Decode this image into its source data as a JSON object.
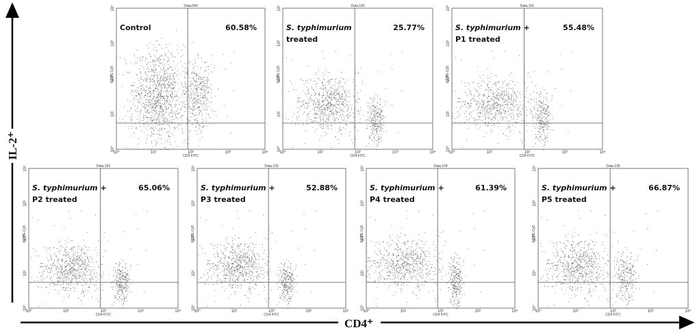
{
  "axes": {
    "y_label": "IL-2⁺",
    "x_label": "CD4⁺",
    "panel_x_label": "CD4 FITC",
    "panel_y_label": "IL2 PE-Cy5",
    "ticks": [
      "10⁰",
      "10¹",
      "10²",
      "10³",
      "10⁴"
    ]
  },
  "panels": [
    {
      "title": "Data.099",
      "percent": "60.58%",
      "lines": [
        [
          {
            "text": "Control",
            "italic": false
          }
        ]
      ]
    },
    {
      "title": "Data.100",
      "percent": "25.77%",
      "lines": [
        [
          {
            "text": "S. typhimurium",
            "italic": true
          }
        ],
        [
          {
            "text": "treated",
            "italic": false
          }
        ]
      ]
    },
    {
      "title": "Data.101",
      "percent": "55.48%",
      "lines": [
        [
          {
            "text": "S. typhimurium",
            "italic": true
          },
          {
            "text": " +",
            "italic": false
          }
        ],
        [
          {
            "text": "P1 treated",
            "italic": false
          }
        ]
      ]
    },
    {
      "title": "Data.102",
      "percent": "65.06%",
      "lines": [
        [
          {
            "text": "S. typhimurium",
            "italic": true
          },
          {
            "text": " +",
            "italic": false
          }
        ],
        [
          {
            "text": "P2 treated",
            "italic": false
          }
        ]
      ]
    },
    {
      "title": "Data.103",
      "percent": "52.88%",
      "lines": [
        [
          {
            "text": "S. typhimurium",
            "italic": true
          },
          {
            "text": " +",
            "italic": false
          }
        ],
        [
          {
            "text": "P3 treated",
            "italic": false
          }
        ]
      ]
    },
    {
      "title": "Data.104",
      "percent": "61.39%",
      "lines": [
        [
          {
            "text": "S. typhimurium",
            "italic": true
          },
          {
            "text": " +",
            "italic": false
          }
        ],
        [
          {
            "text": "P4 treated",
            "italic": false
          }
        ]
      ]
    },
    {
      "title": "Data.105",
      "percent": "66.87%",
      "lines": [
        [
          {
            "text": "S. typhimurium",
            "italic": true
          },
          {
            "text": " +",
            "italic": false
          }
        ],
        [
          {
            "text": "P5 treated",
            "italic": false
          }
        ]
      ]
    }
  ]
}
